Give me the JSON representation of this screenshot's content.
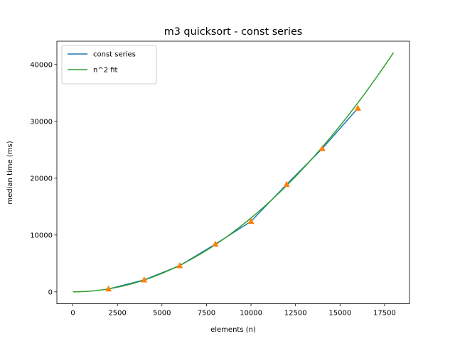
{
  "chart_data": {
    "type": "line",
    "title": "m3 quicksort - const series",
    "xlabel": "elements (n)",
    "ylabel": "median time (ms)",
    "xlim": [
      -900,
      18900
    ],
    "ylim": [
      -2100,
      44100
    ],
    "xticks": [
      0,
      2500,
      5000,
      7500,
      10000,
      12500,
      15000,
      17500
    ],
    "yticks": [
      0,
      10000,
      20000,
      30000,
      40000
    ],
    "grid": false,
    "legend_position": "top-left",
    "series": [
      {
        "name": "const series",
        "color": "#1f77b4",
        "kind": "line",
        "x": [
          2000,
          4000,
          6000,
          8000,
          10000,
          12000,
          14000,
          16000
        ],
        "y": [
          500,
          2100,
          4600,
          8400,
          12400,
          18900,
          25200,
          32300
        ]
      },
      {
        "name": "",
        "color": "#ff7f0e",
        "kind": "markers",
        "marker": "triangle-up",
        "x": [
          2000,
          4000,
          6000,
          8000,
          10000,
          12000,
          14000,
          16000
        ],
        "y": [
          500,
          2100,
          4600,
          8400,
          12400,
          18900,
          25200,
          32300
        ]
      },
      {
        "name": "n^2 fit",
        "color": "#2ca02c",
        "kind": "fit",
        "coefficient": 0.0001299,
        "x_range": [
          0,
          18000
        ]
      }
    ]
  }
}
